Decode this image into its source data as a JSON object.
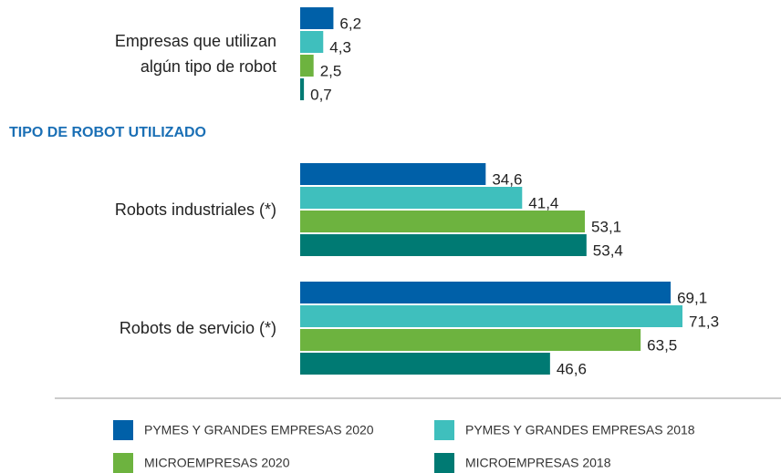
{
  "chart_data": {
    "type": "bar",
    "orientation": "horizontal",
    "section_label": "TIPO DE ROBOT UTILIZADO",
    "categories": [
      "Empresas que utilizan\nalgún tipo de robot",
      "Robots industriales (*)",
      "Robots de servicio (*)"
    ],
    "series": [
      {
        "name": "PYMES Y GRANDES EMPRESAS 2020",
        "color": "#0060a8",
        "values": [
          6.2,
          34.6,
          69.1
        ],
        "value_labels": [
          "6,2",
          "34,6",
          "69,1"
        ]
      },
      {
        "name": "PYMES Y GRANDES EMPRESAS 2018",
        "color": "#3fbfbd",
        "values": [
          4.3,
          41.4,
          71.3
        ],
        "value_labels": [
          "4,3",
          "41,4",
          "71,3"
        ]
      },
      {
        "name": "MICROEMPRESAS 2020",
        "color": "#6db33f",
        "values": [
          2.5,
          53.1,
          63.5
        ],
        "value_labels": [
          "2,5",
          "53,1",
          "63,5"
        ]
      },
      {
        "name": "MICROEMPRESAS 2018",
        "color": "#007a73",
        "values": [
          0.7,
          53.4,
          46.6
        ],
        "value_labels": [
          "0,7",
          "53,4",
          "46,6"
        ]
      }
    ]
  }
}
